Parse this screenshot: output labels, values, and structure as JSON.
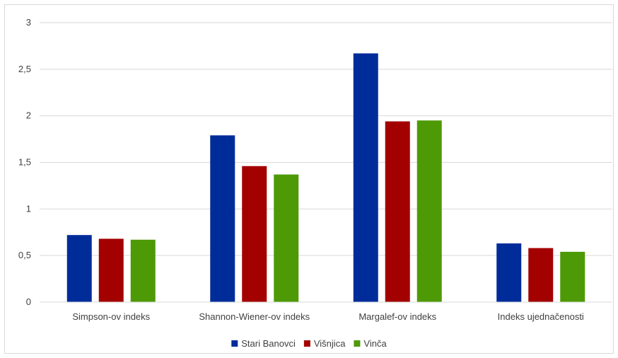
{
  "chart_data": {
    "type": "bar",
    "categories": [
      "Simpson-ov indeks",
      "Shannon-Wiener-ov indeks",
      "Margalef-ov indeks",
      "Indeks ujednačenosti"
    ],
    "series": [
      {
        "name": "Stari Banovci",
        "color": "#002c9a",
        "values": [
          0.72,
          1.79,
          2.67,
          0.63
        ]
      },
      {
        "name": "Višnjica",
        "color": "#a30000",
        "values": [
          0.68,
          1.46,
          1.94,
          0.58
        ]
      },
      {
        "name": "Vinča",
        "color": "#4e9a06",
        "values": [
          0.67,
          1.37,
          1.95,
          0.54
        ]
      }
    ],
    "yticks": [
      "0",
      "0,5",
      "1",
      "1,5",
      "2",
      "2,5",
      "3"
    ],
    "ylim": [
      0,
      3
    ],
    "grid": true,
    "legend_position": "bottom"
  }
}
